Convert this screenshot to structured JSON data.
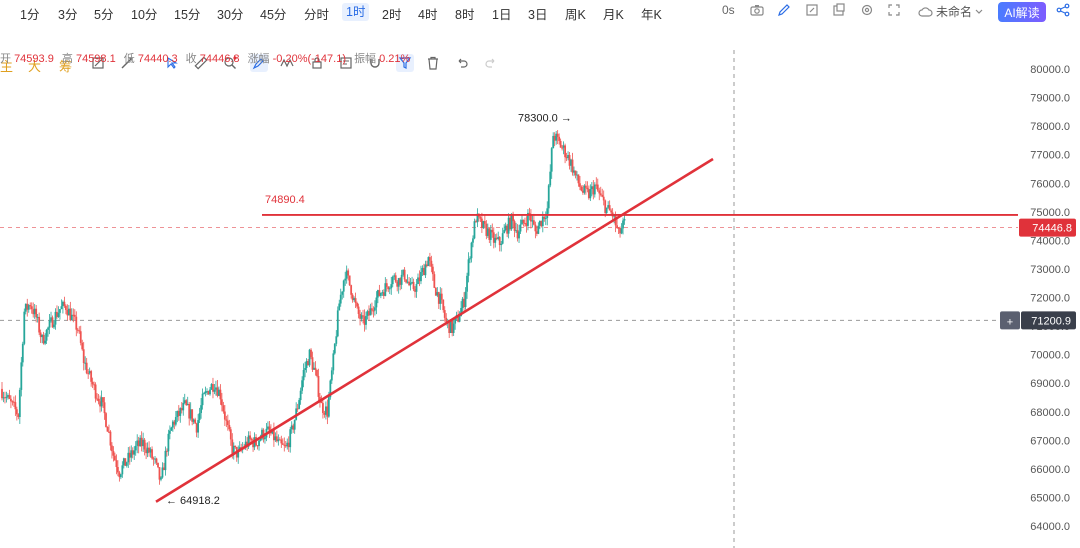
{
  "timeframes": [
    "1分",
    "3分",
    "5分",
    "10分",
    "15分",
    "30分",
    "45分",
    "分时",
    "1时",
    "2时",
    "4时",
    "8时",
    "1日",
    "3日",
    "周K",
    "月K",
    "年K"
  ],
  "active_timeframe": "1时",
  "toolbar_right": {
    "countdown": "0s",
    "layout_name": "未命名",
    "ai_button": "AI解读"
  },
  "draw_chars": [
    "主",
    "大",
    "筹"
  ],
  "ohlc": {
    "open_label": "开",
    "open": "74593.9",
    "high_label": "高",
    "high": "74598.1",
    "low_label": "低",
    "low": "74440.3",
    "close_label": "收",
    "close": "74446.8",
    "change_label": "涨幅",
    "change": "-0.20%(-147.1)",
    "amp_label": "振幅",
    "amp": "0.21%"
  },
  "colors": {
    "up": "#26a69a",
    "down": "#ef5350",
    "line": "#e0323a",
    "accent": "#2b6de5",
    "price_tag": "#e0323a",
    "cross_tag": "#3a3f4b"
  },
  "chart_data": {
    "type": "candlestick",
    "ylim": [
      63600,
      80600
    ],
    "y_ticks": [
      "80000.0",
      "79000.0",
      "78000.0",
      "77000.0",
      "76000.0",
      "75000.0",
      "74000.0",
      "73000.0",
      "72000.0",
      "71000.0",
      "70000.0",
      "69000.0",
      "68000.0",
      "67000.0",
      "66000.0",
      "65000.0",
      "64000.0"
    ],
    "y_tick_values": [
      80000,
      79000,
      78000,
      77000,
      76000,
      75000,
      74000,
      73000,
      72000,
      71000,
      70000,
      69000,
      68000,
      67000,
      66000,
      65000,
      64000
    ],
    "last_price": "74446.8",
    "last_price_value": 74446.8,
    "crosshair_price": "71200.9",
    "crosshair_price_value": 71200.9,
    "horizontal_line": {
      "label": "74890.4",
      "value": 74890.4
    },
    "high_marker": {
      "label": "78300.0",
      "value": 78300.0
    },
    "low_marker": {
      "label": "64918.2",
      "value": 64918.2
    },
    "trendline": {
      "start_value": 64850,
      "end_value": 76850
    },
    "price_path": [
      68800,
      68500,
      68200,
      67900,
      71500,
      71800,
      71300,
      70500,
      70900,
      71300,
      71600,
      71700,
      71300,
      70900,
      69800,
      69200,
      68700,
      68300,
      67500,
      66500,
      65900,
      66200,
      66500,
      66800,
      66900,
      66600,
      66200,
      65500,
      66800,
      67600,
      67900,
      68200,
      67900,
      67500,
      68400,
      68800,
      69000,
      68600,
      67600,
      66700,
      66500,
      66800,
      67000,
      66900,
      67200,
      67300,
      67100,
      66800,
      66700,
      67300,
      68200,
      69400,
      70000,
      69300,
      68200,
      68000,
      69800,
      71800,
      72900,
      72300,
      71500,
      71100,
      71400,
      71900,
      72200,
      72400,
      72700,
      72600,
      72800,
      72300,
      72400,
      72900,
      73400,
      72400,
      71900,
      71100,
      70900,
      71300,
      71900,
      73600,
      74800,
      74500,
      74300,
      74000,
      73900,
      74400,
      74700,
      74300,
      74600,
      74900,
      74300,
      74700,
      75100,
      77700,
      77400,
      77100,
      76700,
      76100,
      75700,
      75600,
      75900,
      75500,
      75100,
      74900,
      74200,
      74600
    ]
  }
}
